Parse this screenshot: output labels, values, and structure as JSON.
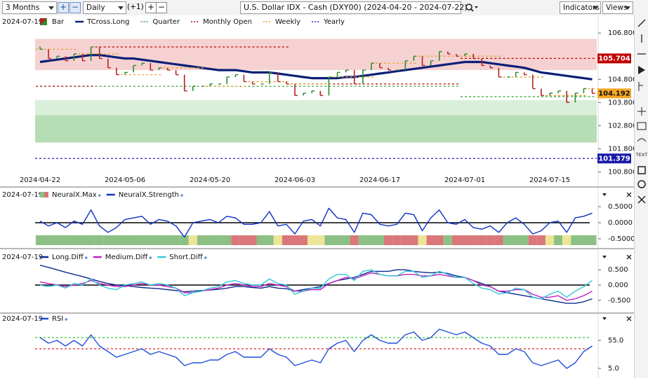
{
  "toolbar": {
    "period": "3 Months",
    "interval": "Daily",
    "offset": "(+1)",
    "title": "U.S. Dollar IDX - Cash (DXY00) (2024-04-20 - 2024-07-22)",
    "indicators": "Indicators",
    "views": "Views",
    "tool_text": "TEXT"
  },
  "chart_data": [
    {
      "type": "line",
      "cursor_date": "2024-07-19",
      "categories": [
        "2024-04-22",
        null,
        null,
        null,
        null,
        null,
        null,
        null,
        null,
        null,
        "2024-05-06",
        null,
        null,
        null,
        null,
        null,
        null,
        null,
        null,
        null,
        "2024-05-20",
        null,
        null,
        null,
        null,
        null,
        null,
        null,
        null,
        null,
        "2024-06-03",
        null,
        null,
        null,
        null,
        null,
        null,
        null,
        null,
        null,
        "2024-06-17",
        null,
        null,
        null,
        null,
        null,
        null,
        null,
        null,
        null,
        "2024-07-01",
        null,
        null,
        null,
        null,
        null,
        null,
        null,
        null,
        null,
        "2024-07-15",
        null,
        null,
        null,
        null,
        null
      ],
      "ylim": [
        100.6,
        107.2
      ],
      "yticks": [
        {
          "value": 100.8,
          "label": "100.800"
        },
        {
          "value": 101.8,
          "label": "101.800"
        },
        {
          "value": 102.8,
          "label": "102.800"
        },
        {
          "value": 103.8,
          "label": "103.800"
        },
        {
          "value": 104.8,
          "label": "104.800"
        },
        {
          "value": 106.8,
          "label": "106.800"
        }
      ],
      "grid": false,
      "zones": [
        {
          "from": 105.2,
          "to": 106.55,
          "color": "#f4c9c9"
        },
        {
          "from": 102.07,
          "to": 103.25,
          "color": "#a9d8a9"
        },
        {
          "from": 103.25,
          "to": 103.9,
          "color": "#d3ecd3"
        }
      ],
      "series": [
        {
          "name": "Bar",
          "kind": "bar",
          "up_color": "#2e8b2e",
          "down_color": "#b22222",
          "box": "#f5a623",
          "values": [
            106.1,
            105.7,
            105.8,
            105.6,
            105.9,
            105.6,
            106.2,
            105.7,
            105.3,
            105.0,
            105.1,
            105.4,
            105.5,
            105.2,
            105.3,
            105.2,
            105.0,
            104.3,
            104.5,
            104.5,
            104.6,
            104.6,
            104.9,
            105.0,
            104.7,
            104.6,
            104.6,
            105.1,
            104.7,
            104.6,
            104.1,
            104.2,
            104.3,
            104.1,
            104.9,
            105.1,
            105.2,
            104.6,
            105.2,
            105.5,
            105.3,
            105.2,
            105.2,
            105.6,
            105.8,
            105.4,
            105.6,
            106.0,
            105.9,
            105.8,
            105.9,
            105.7,
            105.4,
            105.3,
            104.9,
            104.9,
            105.1,
            105.0,
            104.4,
            104.1,
            104.2,
            104.3,
            103.8,
            104.2,
            104.4,
            104.192
          ]
        },
        {
          "name": "TCross.Long",
          "kind": "line",
          "color": "#0a1f78",
          "width": 3.2,
          "values": [
            105.55,
            105.6,
            105.65,
            105.7,
            105.75,
            105.8,
            105.85,
            105.85,
            105.8,
            105.75,
            105.7,
            105.7,
            105.65,
            105.6,
            105.55,
            105.5,
            105.45,
            105.4,
            105.35,
            105.3,
            105.25,
            105.2,
            105.2,
            105.2,
            105.15,
            105.1,
            105.1,
            105.1,
            105.05,
            105.0,
            104.95,
            104.9,
            104.85,
            104.85,
            104.85,
            104.85,
            104.9,
            104.9,
            104.95,
            105.0,
            105.05,
            105.1,
            105.15,
            105.2,
            105.25,
            105.3,
            105.35,
            105.4,
            105.45,
            105.5,
            105.55,
            105.55,
            105.55,
            105.5,
            105.45,
            105.4,
            105.35,
            105.3,
            105.2,
            105.1,
            105.05,
            105.0,
            104.95,
            104.9,
            104.85,
            104.8
          ]
        },
        {
          "name": "Quarter",
          "kind": "step",
          "color": "#2e9e2e",
          "values": [
            104.5,
            104.5,
            104.5,
            104.5,
            104.5,
            104.5,
            104.5,
            104.5,
            104.5,
            104.5,
            104.5,
            104.5,
            104.5,
            104.5,
            104.5,
            104.5,
            104.5,
            104.5,
            104.5,
            104.5,
            104.5,
            104.5,
            104.5,
            104.5,
            104.5,
            104.5,
            104.5,
            104.5,
            104.5,
            104.5,
            104.5,
            104.5,
            104.5,
            104.5,
            104.5,
            104.5,
            104.5,
            104.5,
            104.5,
            104.5,
            104.5,
            104.5,
            104.5,
            104.5,
            104.5,
            104.5,
            104.5,
            104.5,
            104.5,
            104.5,
            104.05,
            104.05,
            104.05,
            104.05,
            104.05,
            104.05,
            104.05,
            104.05,
            104.05,
            104.05,
            104.05,
            104.05,
            104.05,
            104.05,
            104.05,
            104.05
          ]
        },
        {
          "name": "Monthly Open",
          "kind": "step",
          "color": "#c00000",
          "box": "#c00000",
          "values": [
            104.5,
            104.5,
            104.5,
            104.5,
            104.5,
            104.5,
            104.5,
            106.2,
            106.2,
            106.2,
            106.2,
            106.2,
            106.2,
            106.2,
            106.2,
            106.2,
            106.2,
            106.2,
            106.2,
            106.2,
            106.2,
            106.2,
            106.2,
            106.2,
            106.2,
            106.2,
            106.2,
            106.2,
            106.2,
            106.2,
            104.6,
            104.6,
            104.6,
            104.6,
            104.6,
            104.6,
            104.6,
            104.6,
            104.6,
            104.6,
            104.6,
            104.6,
            104.6,
            104.6,
            104.6,
            104.6,
            104.6,
            104.6,
            104.6,
            104.6,
            105.704,
            105.704,
            105.704,
            105.704,
            105.704,
            105.704,
            105.704,
            105.704,
            105.704,
            105.704,
            105.704,
            105.704,
            105.704,
            105.704,
            105.704,
            105.704
          ]
        },
        {
          "name": "Weekly",
          "kind": "step",
          "color": "#e0a020",
          "values": [
            106.1,
            106.1,
            106.1,
            106.1,
            106.1,
            105.9,
            105.9,
            105.9,
            105.9,
            105.9,
            105.0,
            105.0,
            105.0,
            105.0,
            105.0,
            105.3,
            105.3,
            105.3,
            105.3,
            105.3,
            104.5,
            104.5,
            104.5,
            104.5,
            104.5,
            104.7,
            104.7,
            104.7,
            104.7,
            104.7,
            104.6,
            104.6,
            104.6,
            104.6,
            104.6,
            104.9,
            104.9,
            104.9,
            104.9,
            104.9,
            105.5,
            105.5,
            105.5,
            105.5,
            105.5,
            105.8,
            105.8,
            105.8,
            105.8,
            105.8,
            105.8,
            105.8,
            105.8,
            105.8,
            105.8,
            104.9,
            104.9,
            104.9,
            104.9,
            104.9,
            104.1,
            104.1,
            104.1,
            104.1,
            104.1,
            104.4
          ]
        },
        {
          "name": "Yearly",
          "kind": "hline",
          "color": "#2222cc",
          "box": "#1a1aa8",
          "value": 101.379
        }
      ]
    },
    {
      "type": "line",
      "cursor_date": "2024-07-19",
      "ylim": [
        -0.72,
        0.72
      ],
      "yticks": [
        {
          "value": -0.5,
          "label": "-0.5000"
        },
        {
          "value": 0,
          "label": "0.0000"
        },
        {
          "value": 0.5,
          "label": "0.5000"
        }
      ],
      "reference_lines": [
        {
          "value": 0,
          "color": "#000000"
        }
      ],
      "series": [
        {
          "name": "NeuralX.Max",
          "kind": "heat",
          "colors": [
            "#8cc084",
            "#8cc084",
            "#8cc084",
            "#8cc084",
            "#8cc084",
            "#8cc084",
            "#8cc084",
            "#8cc084",
            "#8cc084",
            "#8cc084",
            "#8cc084",
            "#8cc084",
            "#8cc084",
            "#8cc084",
            "#8cc084",
            "#8cc084",
            "#8cc084",
            "#8cc084",
            "#ece596",
            "#8cc084",
            "#8cc084",
            "#8cc084",
            "#8cc084",
            "#d9777a",
            "#d9777a",
            "#d9777a",
            "#8cc084",
            "#8cc084",
            "#ece596",
            "#d9777a",
            "#d9777a",
            "#d9777a",
            "#ece596",
            "#ece596",
            "#8cc084",
            "#8cc084",
            "#8cc084",
            "#d9777a",
            "#8cc084",
            "#8cc084",
            "#8cc084",
            "#d9777a",
            "#d9777a",
            "#d9777a",
            "#d9777a",
            "#ece596",
            "#d9777a",
            "#d9777a",
            "#8cc084",
            "#d9777a",
            "#d9777a",
            "#d9777a",
            "#d9777a",
            "#d9777a",
            "#d9777a",
            "#8cc084",
            "#8cc084",
            "#8cc084",
            "#d9777a",
            "#d9777a",
            "#ece596",
            "#8cc084",
            "#ece596",
            "#8cc084",
            "#8cc084",
            "#8cc084"
          ]
        },
        {
          "name": "NeuralX.Strength",
          "kind": "line",
          "color": "#1030c0",
          "width": 1.4,
          "values": [
            0.05,
            -0.1,
            0.0,
            -0.15,
            0.05,
            -0.05,
            0.4,
            -0.1,
            -0.3,
            -0.15,
            0.1,
            0.15,
            0.2,
            -0.05,
            0.1,
            0.05,
            -0.1,
            -0.45,
            0.0,
            0.05,
            0.1,
            0.0,
            0.2,
            0.15,
            -0.05,
            -0.05,
            0.0,
            0.35,
            -0.1,
            -0.05,
            -0.35,
            0.05,
            0.1,
            -0.1,
            0.45,
            0.15,
            0.1,
            -0.3,
            0.3,
            0.25,
            -0.05,
            -0.1,
            -0.05,
            0.3,
            0.25,
            -0.25,
            0.15,
            0.4,
            0.0,
            -0.05,
            0.1,
            -0.15,
            -0.2,
            -0.1,
            -0.3,
            0.0,
            0.15,
            -0.05,
            -0.35,
            -0.25,
            0.0,
            0.05,
            -0.3,
            0.15,
            0.2,
            0.3
          ]
        }
      ]
    },
    {
      "type": "line",
      "cursor_date": "2024-07-19",
      "ylim": [
        -0.85,
        0.85
      ],
      "yticks": [
        {
          "value": -0.5,
          "label": "-0.500"
        },
        {
          "value": 0,
          "label": "0.000"
        },
        {
          "value": 0.5,
          "label": "0.500"
        }
      ],
      "reference_lines": [
        {
          "value": 0,
          "color": "#000000"
        }
      ],
      "series": [
        {
          "name": "Long.Diff",
          "kind": "line",
          "color": "#0a2a8a",
          "width": 1.4,
          "values": [
            0.65,
            0.58,
            0.5,
            0.42,
            0.35,
            0.28,
            0.2,
            0.12,
            0.05,
            0.0,
            -0.02,
            -0.05,
            -0.08,
            -0.1,
            -0.12,
            -0.15,
            -0.18,
            -0.22,
            -0.2,
            -0.18,
            -0.16,
            -0.14,
            -0.1,
            -0.05,
            -0.05,
            -0.08,
            -0.1,
            -0.05,
            -0.1,
            -0.12,
            -0.2,
            -0.15,
            -0.1,
            -0.05,
            0.05,
            0.15,
            0.2,
            0.25,
            0.35,
            0.45,
            0.45,
            0.45,
            0.5,
            0.5,
            0.45,
            0.42,
            0.4,
            0.42,
            0.38,
            0.3,
            0.25,
            0.15,
            0.05,
            -0.05,
            -0.2,
            -0.25,
            -0.3,
            -0.35,
            -0.4,
            -0.45,
            -0.5,
            -0.55,
            -0.6,
            -0.6,
            -0.55,
            -0.45
          ]
        },
        {
          "name": "Medium.Diff",
          "kind": "line",
          "color": "#c020c0",
          "width": 1.4,
          "values": [
            0.1,
            0.05,
            0.0,
            -0.05,
            0.0,
            0.05,
            0.15,
            0.05,
            0.0,
            -0.05,
            -0.05,
            0.0,
            0.05,
            0.0,
            0.0,
            -0.05,
            -0.1,
            -0.25,
            -0.25,
            -0.2,
            -0.15,
            -0.1,
            0.0,
            0.05,
            0.0,
            -0.05,
            -0.05,
            0.05,
            0.0,
            -0.05,
            -0.2,
            -0.2,
            -0.15,
            -0.15,
            0.05,
            0.15,
            0.25,
            0.2,
            0.3,
            0.4,
            0.35,
            0.3,
            0.3,
            0.35,
            0.35,
            0.3,
            0.3,
            0.35,
            0.3,
            0.25,
            0.25,
            0.15,
            0.0,
            -0.05,
            -0.2,
            -0.2,
            -0.15,
            -0.15,
            -0.3,
            -0.4,
            -0.4,
            -0.35,
            -0.5,
            -0.45,
            -0.35,
            -0.2
          ]
        },
        {
          "name": "Short.Diff",
          "kind": "line",
          "color": "#30c8d8",
          "width": 1.4,
          "values": [
            0.0,
            -0.05,
            0.0,
            -0.1,
            0.05,
            0.0,
            0.2,
            0.0,
            -0.1,
            -0.15,
            0.0,
            0.05,
            0.1,
            0.0,
            0.05,
            0.0,
            -0.1,
            -0.35,
            -0.25,
            -0.2,
            -0.1,
            -0.05,
            0.1,
            0.15,
            0.05,
            0.0,
            0.0,
            0.2,
            0.05,
            0.0,
            -0.3,
            -0.2,
            -0.1,
            -0.1,
            0.2,
            0.35,
            0.35,
            0.15,
            0.45,
            0.5,
            0.35,
            0.3,
            0.3,
            0.45,
            0.45,
            0.25,
            0.3,
            0.45,
            0.35,
            0.25,
            0.25,
            0.05,
            -0.1,
            -0.15,
            -0.3,
            -0.25,
            -0.1,
            -0.15,
            -0.4,
            -0.45,
            -0.3,
            -0.2,
            -0.4,
            -0.2,
            -0.05,
            0.15
          ]
        }
      ]
    },
    {
      "type": "line",
      "cursor_date": "2024-07-19",
      "ylim": [
        0,
        90
      ],
      "yticks": [
        {
          "value": 5,
          "label": "5.0"
        },
        {
          "value": 55,
          "label": "55.0"
        }
      ],
      "reference_lines": [
        {
          "value": 60,
          "color": "#33cc33"
        },
        {
          "value": 40,
          "color": "#dd2222"
        }
      ],
      "series": [
        {
          "name": "RSI",
          "kind": "line",
          "color": "#1f4fd8",
          "width": 1.4,
          "values": [
            60,
            50,
            55,
            45,
            55,
            45,
            65,
            45,
            35,
            25,
            30,
            35,
            40,
            30,
            35,
            30,
            25,
            10,
            15,
            15,
            20,
            20,
            30,
            35,
            25,
            25,
            25,
            40,
            30,
            25,
            10,
            15,
            20,
            15,
            40,
            50,
            55,
            35,
            55,
            65,
            55,
            50,
            50,
            65,
            70,
            55,
            60,
            75,
            70,
            65,
            70,
            60,
            50,
            45,
            30,
            30,
            40,
            35,
            15,
            10,
            15,
            20,
            5,
            15,
            35,
            45
          ]
        }
      ]
    }
  ]
}
